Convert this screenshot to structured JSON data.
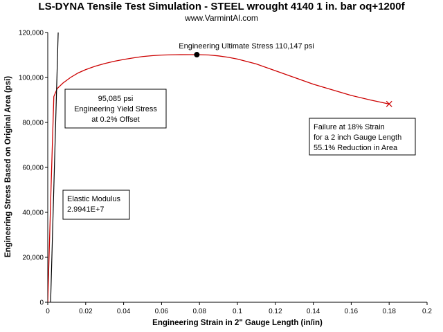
{
  "chart_data": {
    "type": "line",
    "title": "LS-DYNA Tensile Test Simulation - STEEL wrought 4140 1 in. bar oq+1200f",
    "subtitle": "www.VarmintAl.com",
    "xlabel": "Engineering Strain in 2\" Gauge Length (in/in)",
    "ylabel": "Engineering Stress Based on Original Area (psi)",
    "xlim": [
      0,
      0.2
    ],
    "ylim": [
      0,
      120000
    ],
    "x_ticks": [
      0,
      0.02,
      0.04,
      0.06,
      0.08,
      0.1,
      0.12,
      0.14,
      0.16,
      0.18,
      0.2
    ],
    "x_tick_labels": [
      "0",
      "0.02",
      "0.04",
      "0.06",
      "0.08",
      "0.1",
      "0.12",
      "0.14",
      "0.16",
      "0.18",
      "0.2"
    ],
    "y_ticks": [
      0,
      20000,
      40000,
      60000,
      80000,
      100000,
      120000
    ],
    "y_tick_labels": [
      "0",
      "20,000",
      "40,000",
      "60,000",
      "80,000",
      "100,000",
      "120,000"
    ],
    "grid": false,
    "colors": {
      "curve": "#cc0000",
      "modulus_line": "#000000",
      "marker": "#000000",
      "failure_marker": "#cc0000"
    },
    "series": [
      {
        "x": [
          0,
          0.0017,
          0.0032,
          0.005,
          0.008,
          0.012,
          0.016,
          0.02,
          0.025,
          0.03,
          0.035,
          0.04,
          0.045,
          0.05,
          0.055,
          0.06,
          0.065,
          0.07,
          0.075,
          0.0786,
          0.085,
          0.09,
          0.095,
          0.1,
          0.11,
          0.12,
          0.13,
          0.14,
          0.15,
          0.16,
          0.17,
          0.18
        ],
        "y": [
          0,
          50000,
          91500,
          95085,
          97500,
          100000,
          102000,
          103500,
          105000,
          106200,
          107200,
          108000,
          108700,
          109300,
          109700,
          109950,
          110080,
          110140,
          110147,
          110147,
          110000,
          109600,
          109000,
          108200,
          106000,
          103000,
          100000,
          97000,
          94500,
          92000,
          90000,
          88200
        ]
      },
      {
        "x": [
          0.0015,
          0.0055
        ],
        "y": [
          0,
          120000
        ]
      }
    ],
    "ultimate_point": {
      "x": 0.0786,
      "y": 110147,
      "label": "Engineering Ultimate Stress 110,147 psi"
    },
    "failure_point": {
      "x": 0.18,
      "y": 88200
    },
    "annotations": [
      {
        "lines": [
          "95,085 psi",
          "Engineering Yield Stress",
          "at 0.2% Offset"
        ]
      },
      {
        "lines": [
          "Elastic Modulus",
          "2.9941E+7"
        ]
      },
      {
        "lines": [
          "Failure at 18% Strain",
          "for a 2 inch Gauge Length",
          "55.1% Reduction in Area"
        ]
      }
    ]
  }
}
